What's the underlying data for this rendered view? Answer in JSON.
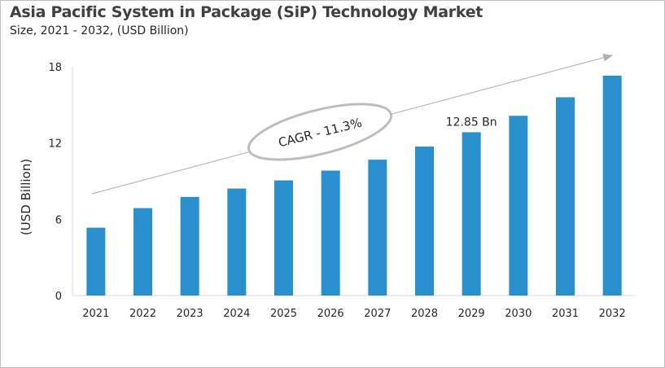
{
  "chart_data": {
    "type": "bar",
    "title": "Asia Pacific System in Package (SiP) Technology Market",
    "subtitle": "Size, 2021 - 2032, (USD Billion)",
    "xlabel": "",
    "ylabel": "(USD Billion)",
    "categories": [
      "2021",
      "2022",
      "2023",
      "2024",
      "2025",
      "2026",
      "2027",
      "2028",
      "2029",
      "2030",
      "2031",
      "2032"
    ],
    "values": [
      5.34,
      6.88,
      7.76,
      8.42,
      9.06,
      9.83,
      10.69,
      11.72,
      12.85,
      14.14,
      15.6,
      17.3
    ],
    "ylim": [
      0,
      18
    ],
    "yticks": [
      "0",
      "6",
      "12",
      "18"
    ],
    "grid": false,
    "bar_color": "#2a8fcd",
    "annotations": {
      "data_label": {
        "category": "2029",
        "text": "12.85 Bn"
      },
      "cagr": "CAGR - 11.3%"
    }
  }
}
